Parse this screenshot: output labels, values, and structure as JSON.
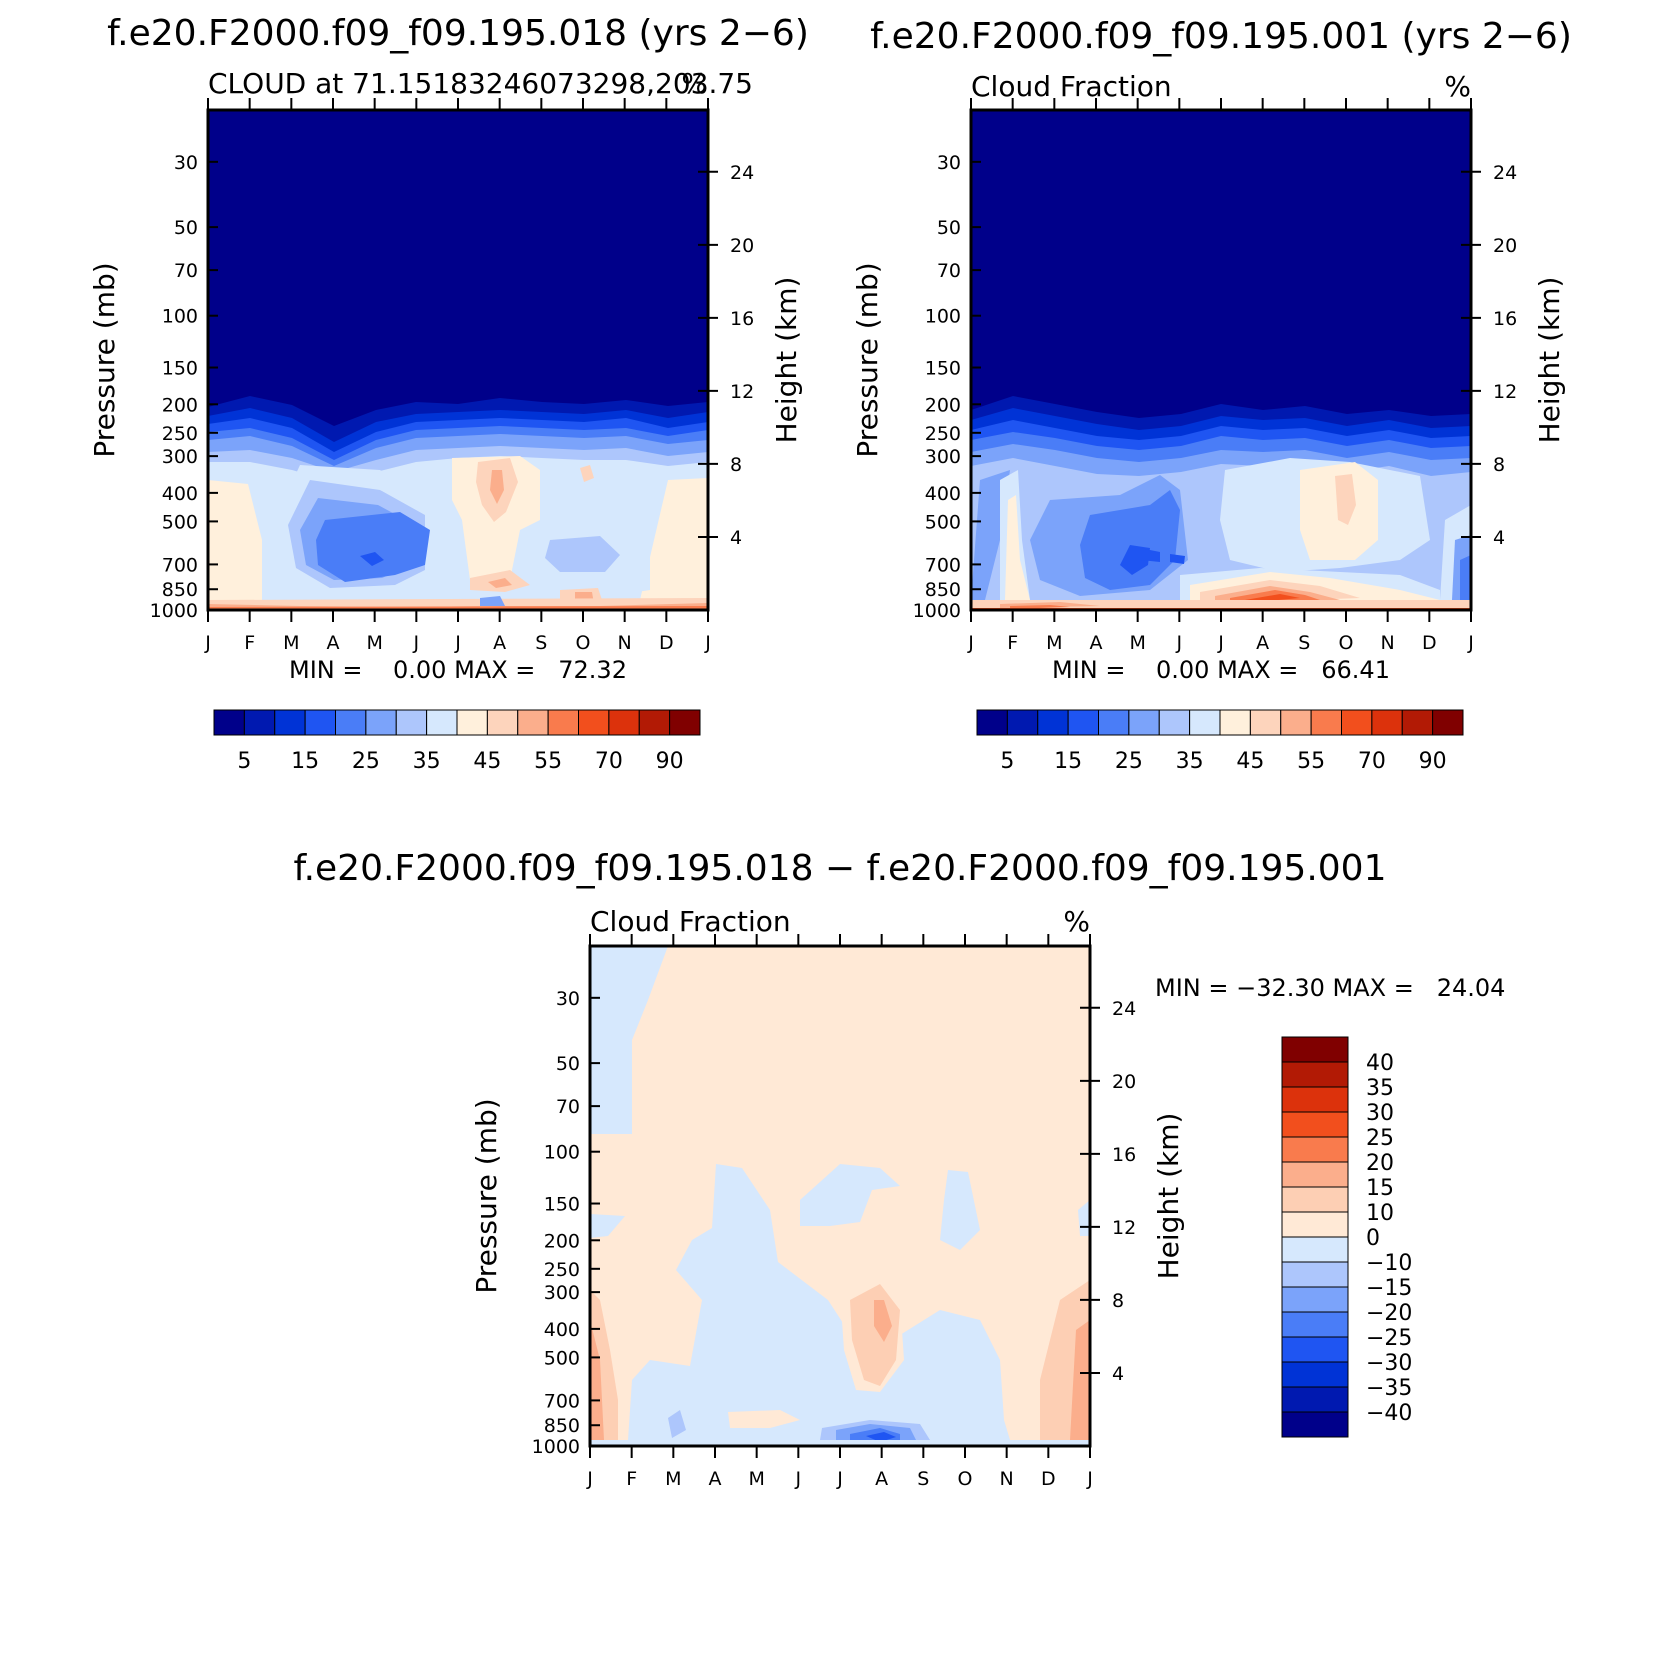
{
  "colors": {
    "abs_scale": [
      "#00008a",
      "#0019b0",
      "#0033d6",
      "#1f55f2",
      "#4a7df7",
      "#7ba3fa",
      "#adc6fc",
      "#d6e8fd",
      "#fff0dc",
      "#fdd4bc",
      "#fbae8c",
      "#f97b4d",
      "#f24f1d",
      "#dc320c",
      "#b21a05",
      "#800000"
    ],
    "diff_scale": [
      "#00008a",
      "#0019b0",
      "#0033d6",
      "#1f55f2",
      "#4a7df7",
      "#7ba3fa",
      "#adc6fc",
      "#d6e8fd",
      "#ffe9d6",
      "#fdcfb4",
      "#fbae8c",
      "#f97b4d",
      "#f24f1d",
      "#dc320c",
      "#b21a05",
      "#800000"
    ]
  },
  "panels": [
    {
      "title": "f.e20.F2000.f09_f09.195.018 (yrs 2−6)",
      "left_label": "CLOUD at 71.15183246073298,203.75",
      "right_label": "%",
      "minmax": "MIN =    0.00 MAX =   72.32",
      "ylabel_left": "Pressure (mb)",
      "ylabel_right": "Height (km)",
      "colorbar_labels": [
        "5",
        "15",
        "25",
        "35",
        "45",
        "55",
        "70",
        "90"
      ]
    },
    {
      "title": "f.e20.F2000.f09_f09.195.001 (yrs 2−6)",
      "left_label": "Cloud Fraction",
      "right_label": "%",
      "minmax": "MIN =    0.00 MAX =   66.41",
      "ylabel_left": "Pressure (mb)",
      "ylabel_right": "Height (km)",
      "colorbar_labels": [
        "5",
        "15",
        "25",
        "35",
        "45",
        "55",
        "70",
        "90"
      ]
    },
    {
      "title": "f.e20.F2000.f09_f09.195.018 − f.e20.F2000.f09_f09.195.001",
      "left_label": "Cloud Fraction",
      "right_label": "%",
      "minmax": "MIN = −32.30 MAX =   24.04",
      "ylabel_left": "Pressure (mb)",
      "ylabel_right": "Height (km)",
      "colorbar_labels": [
        "40",
        "35",
        "30",
        "25",
        "20",
        "15",
        "10",
        "0",
        "−10",
        "−15",
        "−20",
        "−25",
        "−30",
        "−35",
        "−40"
      ]
    }
  ],
  "chart_data": [
    {
      "type": "heatmap",
      "title": "f.e20.F2000.f09_f09.195.018 (yrs 2−6)",
      "xlabel": "",
      "ylabel": "Pressure (mb)",
      "ylabel_right": "Height (km)",
      "months": [
        "J",
        "F",
        "M",
        "A",
        "M",
        "J",
        "J",
        "A",
        "S",
        "O",
        "N",
        "D",
        "J"
      ],
      "pressure_ticks": [
        30,
        50,
        70,
        100,
        150,
        200,
        250,
        300,
        400,
        500,
        700,
        850,
        1000
      ],
      "height_ticks": [
        24,
        20,
        16,
        12,
        8,
        4
      ],
      "y_scale": "log",
      "levels": [
        5,
        10,
        15,
        20,
        25,
        30,
        35,
        40,
        45,
        50,
        55,
        60,
        70,
        80,
        90
      ],
      "min": 0.0,
      "max": 72.32,
      "units": "%"
    },
    {
      "type": "heatmap",
      "title": "f.e20.F2000.f09_f09.195.001 (yrs 2−6)",
      "xlabel": "",
      "ylabel": "Pressure (mb)",
      "ylabel_right": "Height (km)",
      "months": [
        "J",
        "F",
        "M",
        "A",
        "M",
        "J",
        "J",
        "A",
        "S",
        "O",
        "N",
        "D",
        "J"
      ],
      "pressure_ticks": [
        30,
        50,
        70,
        100,
        150,
        200,
        250,
        300,
        400,
        500,
        700,
        850,
        1000
      ],
      "height_ticks": [
        24,
        20,
        16,
        12,
        8,
        4
      ],
      "y_scale": "log",
      "levels": [
        5,
        10,
        15,
        20,
        25,
        30,
        35,
        40,
        45,
        50,
        55,
        60,
        70,
        80,
        90
      ],
      "min": 0.0,
      "max": 66.41,
      "units": "%"
    },
    {
      "type": "heatmap",
      "title": "f.e20.F2000.f09_f09.195.018 − f.e20.F2000.f09_f09.195.001",
      "xlabel": "",
      "ylabel": "Pressure (mb)",
      "ylabel_right": "Height (km)",
      "months": [
        "J",
        "F",
        "M",
        "A",
        "M",
        "J",
        "J",
        "A",
        "S",
        "O",
        "N",
        "D",
        "J"
      ],
      "pressure_ticks": [
        30,
        50,
        70,
        100,
        150,
        200,
        250,
        300,
        400,
        500,
        700,
        850,
        1000
      ],
      "height_ticks": [
        24,
        20,
        16,
        12,
        8,
        4
      ],
      "y_scale": "log",
      "levels": [
        -40,
        -35,
        -30,
        -25,
        -20,
        -15,
        -10,
        0,
        10,
        15,
        20,
        25,
        30,
        35,
        40
      ],
      "min": -32.3,
      "max": 24.04,
      "units": "%"
    }
  ]
}
